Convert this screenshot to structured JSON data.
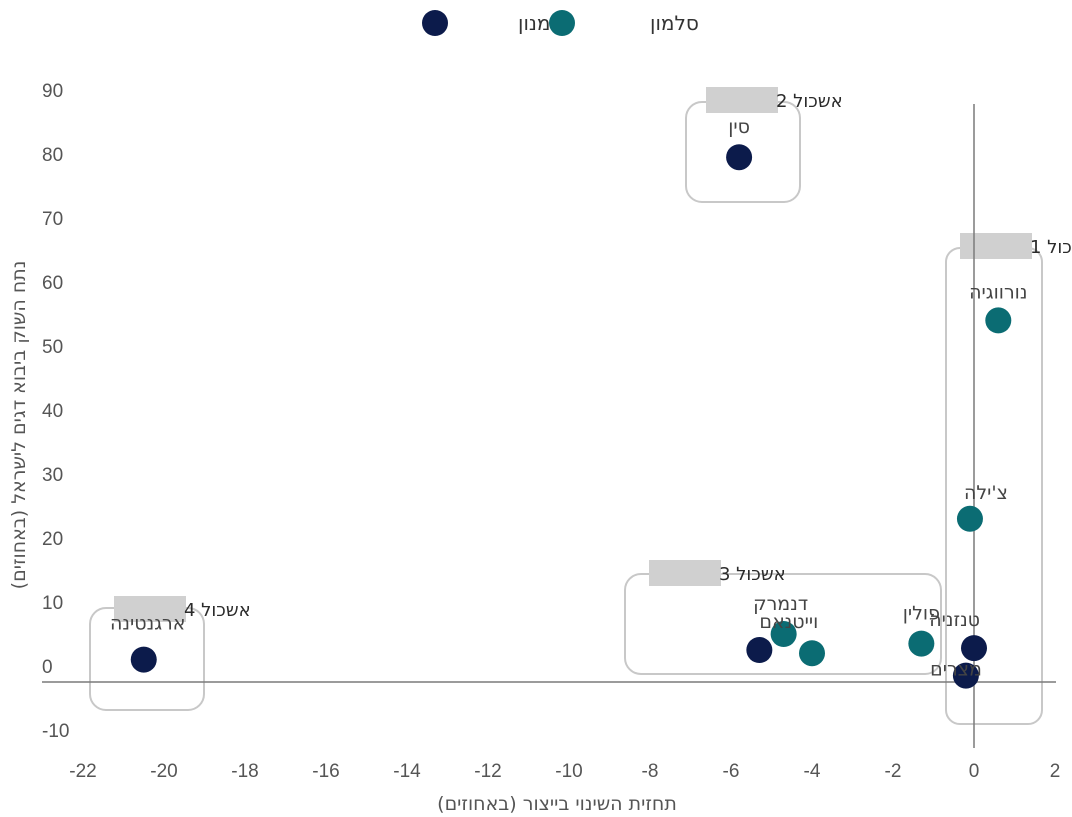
{
  "chart_data": {
    "type": "scatter",
    "xlabel": "תחזית השינוי בייצור (באחוזים)",
    "ylabel": "נתח השוק ביבוא דגים לישראל (באחוזים)",
    "xlim": [
      -22,
      2
    ],
    "ylim": [
      -10,
      90
    ],
    "x_ticks": [
      "-22",
      "-20",
      "-18",
      "-16",
      "-14",
      "-12",
      "-10",
      "-8",
      "-6",
      "-4",
      "-2",
      "0",
      "2"
    ],
    "y_ticks": [
      "90",
      "80",
      "70",
      "60",
      "50",
      "40",
      "30",
      "20",
      "10",
      "0",
      "-10"
    ],
    "legend": "top-center",
    "series": [
      {
        "name": "אמנון",
        "color": "#0c1b4b",
        "points": [
          {
            "label": "סין",
            "x": -5.8,
            "y": 79.5
          },
          {
            "label": "וייטנאם",
            "x": -5.3,
            "y": 2.5
          },
          {
            "label": "טנזניה",
            "x": 0.0,
            "y": 2.8
          },
          {
            "label": "מצרים",
            "x": -0.2,
            "y": -1.5
          },
          {
            "label": "ארגנטינה",
            "x": -20.5,
            "y": 1.0
          }
        ]
      },
      {
        "name": "סלמון",
        "color": "#0b6c73",
        "points": [
          {
            "label": "נורווגיה",
            "x": 0.6,
            "y": 54.0
          },
          {
            "label": "צ'ילה",
            "x": -0.1,
            "y": 23.0
          },
          {
            "label": "דנמרק",
            "x": -4.7,
            "y": 5.0
          },
          {
            "label": "",
            "x": -4.0,
            "y": 2.0
          },
          {
            "label": "פולין",
            "x": -1.3,
            "y": 3.5
          }
        ]
      }
    ],
    "clusters": [
      {
        "label": "אשכול 1"
      },
      {
        "label": "אשכול 2"
      },
      {
        "label": "אשכול 3"
      },
      {
        "label": "אשכול 4"
      }
    ]
  }
}
